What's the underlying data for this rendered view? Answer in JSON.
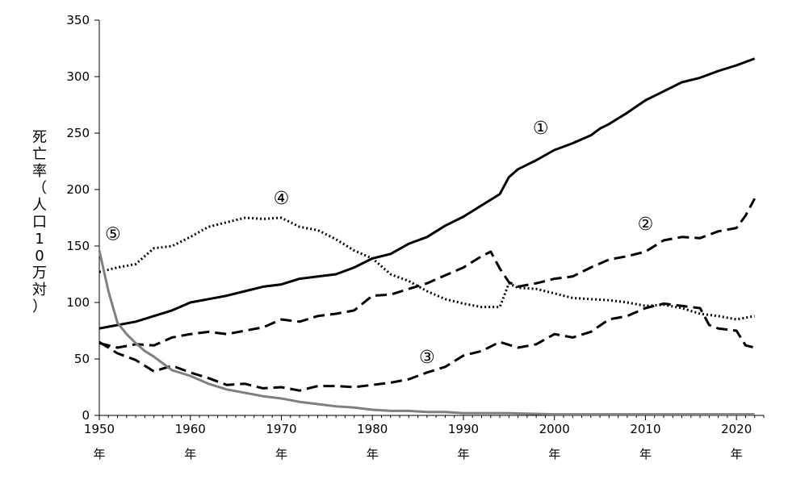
{
  "chart_data": {
    "type": "line",
    "title": "",
    "xlabel": "",
    "ylabel": "死亡率（人口10万対）",
    "xlim": [
      1950,
      2023
    ],
    "ylim": [
      0,
      350
    ],
    "x_ticks": [
      {
        "value": 1950,
        "label": "1950",
        "unit": "年"
      },
      {
        "value": 1960,
        "label": "1960",
        "unit": "年"
      },
      {
        "value": 1970,
        "label": "1970",
        "unit": "年"
      },
      {
        "value": 1980,
        "label": "1980",
        "unit": "年"
      },
      {
        "value": 1990,
        "label": "1990",
        "unit": "年"
      },
      {
        "value": 2000,
        "label": "2000",
        "unit": "年"
      },
      {
        "value": 2010,
        "label": "2010",
        "unit": "年"
      },
      {
        "value": 2020,
        "label": "2020",
        "unit": "年"
      }
    ],
    "y_ticks": [
      0,
      50,
      100,
      150,
      200,
      250,
      300,
      350
    ],
    "grid": false,
    "legend": "none",
    "series": [
      {
        "marker": "①",
        "color": "#000000",
        "style": "solid",
        "x": [
          1950,
          1952,
          1954,
          1956,
          1958,
          1960,
          1962,
          1964,
          1966,
          1968,
          1970,
          1972,
          1974,
          1976,
          1978,
          1980,
          1982,
          1984,
          1986,
          1988,
          1990,
          1992,
          1994,
          1995,
          1996,
          1998,
          2000,
          2002,
          2004,
          2005,
          2006,
          2008,
          2010,
          2012,
          2014,
          2016,
          2018,
          2020,
          2022
        ],
        "y": [
          77,
          80,
          83,
          88,
          93,
          100,
          103,
          106,
          110,
          114,
          116,
          121,
          123,
          125,
          131,
          139,
          143,
          152,
          158,
          168,
          176,
          186,
          196,
          211,
          218,
          226,
          235,
          241,
          248,
          254,
          258,
          268,
          279,
          287,
          295,
          299,
          305,
          310,
          316
        ]
      },
      {
        "marker": "②",
        "color": "#000000",
        "style": "dashed",
        "x": [
          1950,
          1952,
          1954,
          1956,
          1958,
          1960,
          1962,
          1964,
          1966,
          1968,
          1970,
          1972,
          1974,
          1976,
          1978,
          1980,
          1982,
          1984,
          1986,
          1988,
          1990,
          1992,
          1993,
          1994,
          1995,
          1996,
          1998,
          2000,
          2002,
          2004,
          2006,
          2008,
          2010,
          2012,
          2014,
          2016,
          2018,
          2020,
          2021,
          2022
        ],
        "y": [
          64,
          60,
          63,
          62,
          69,
          72,
          74,
          72,
          75,
          78,
          85,
          83,
          88,
          90,
          93,
          106,
          107,
          112,
          117,
          124,
          131,
          141,
          145,
          130,
          118,
          114,
          117,
          121,
          123,
          131,
          138,
          141,
          145,
          155,
          158,
          157,
          163,
          166,
          177,
          192
        ]
      },
      {
        "marker": "③",
        "color": "#000000",
        "style": "dashed",
        "x": [
          1950,
          1952,
          1954,
          1956,
          1958,
          1960,
          1962,
          1964,
          1966,
          1968,
          1970,
          1972,
          1974,
          1976,
          1978,
          1980,
          1982,
          1984,
          1986,
          1988,
          1990,
          1992,
          1994,
          1996,
          1998,
          2000,
          2002,
          2004,
          2006,
          2008,
          2010,
          2012,
          2014,
          2016,
          2017,
          2018,
          2020,
          2021,
          2022
        ],
        "y": [
          65,
          55,
          49,
          39,
          44,
          38,
          33,
          27,
          28,
          24,
          25,
          22,
          26,
          26,
          25,
          27,
          29,
          32,
          38,
          43,
          53,
          57,
          65,
          60,
          63,
          72,
          69,
          74,
          85,
          88,
          95,
          99,
          97,
          95,
          80,
          77,
          75,
          62,
          60
        ]
      },
      {
        "marker": "④",
        "color": "#000000",
        "style": "dotted",
        "x": [
          1950,
          1952,
          1954,
          1956,
          1958,
          1960,
          1962,
          1964,
          1966,
          1968,
          1970,
          1972,
          1974,
          1976,
          1978,
          1980,
          1982,
          1984,
          1986,
          1988,
          1990,
          1992,
          1994,
          1995,
          1996,
          1998,
          2000,
          2002,
          2004,
          2006,
          2008,
          2010,
          2012,
          2014,
          2016,
          2018,
          2020,
          2022
        ],
        "y": [
          127,
          131,
          134,
          148,
          150,
          158,
          167,
          171,
          175,
          174,
          175,
          167,
          164,
          156,
          146,
          139,
          125,
          119,
          110,
          103,
          99,
          96,
          96,
          117,
          113,
          112,
          108,
          104,
          103,
          102,
          100,
          97,
          98,
          95,
          90,
          88,
          85,
          88
        ]
      },
      {
        "marker": "⑤",
        "color": "#7f7f7f",
        "style": "solid",
        "x": [
          1950,
          1951,
          1952,
          1953,
          1954,
          1955,
          1956,
          1958,
          1960,
          1962,
          1964,
          1966,
          1968,
          1970,
          1972,
          1974,
          1976,
          1978,
          1980,
          1982,
          1984,
          1986,
          1988,
          1990,
          1995,
          2000,
          2005,
          2010,
          2015,
          2020,
          2022
        ],
        "y": [
          146,
          110,
          82,
          72,
          64,
          57,
          52,
          40,
          35,
          28,
          23,
          20,
          17,
          15,
          12,
          10,
          8,
          7,
          5,
          4,
          4,
          3,
          3,
          2,
          2,
          1,
          1,
          1,
          1,
          1,
          1
        ]
      }
    ],
    "annotations": [
      {
        "label": "①",
        "x": 1998.5,
        "y": 255
      },
      {
        "label": "②",
        "x": 2010,
        "y": 170
      },
      {
        "label": "③",
        "x": 1986,
        "y": 52
      },
      {
        "label": "④",
        "x": 1970,
        "y": 193
      },
      {
        "label": "⑤",
        "x": 1951.5,
        "y": 161
      }
    ]
  }
}
